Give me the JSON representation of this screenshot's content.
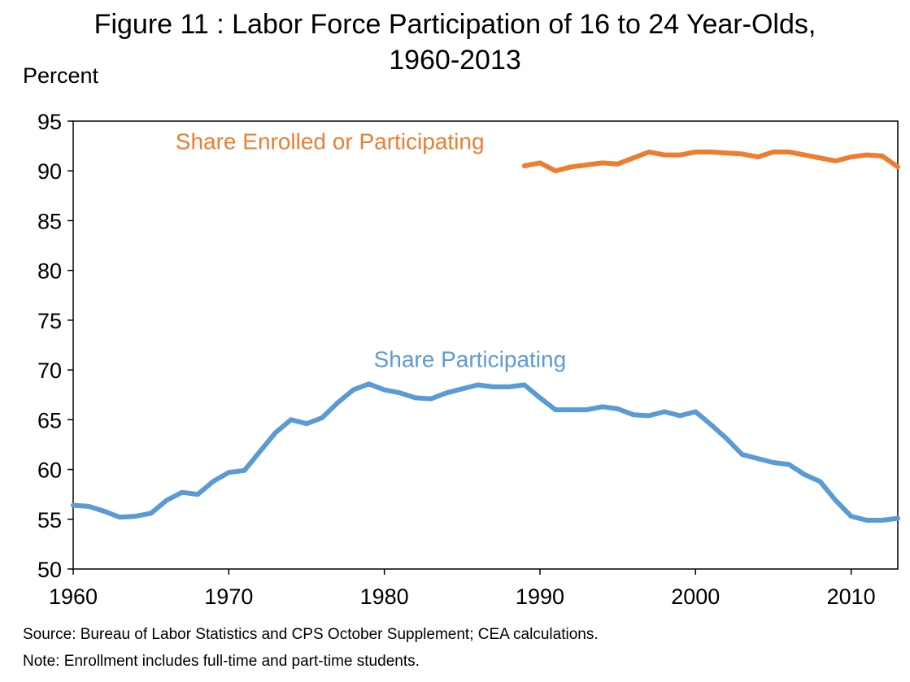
{
  "figure": {
    "title_line1": "Figure 11 : Labor Force Participation of 16 to 24 Year-Olds,",
    "title_line2": "1960-2013",
    "source": "Source: Bureau of Labor Statistics and CPS October Supplement; CEA calculations.",
    "note": "Note: Enrollment includes full-time and part-time students."
  },
  "chart_data": {
    "type": "line",
    "title": "Figure 11 : Labor Force Participation of 16 to 24 Year-Olds, 1960-2013",
    "xlabel": "",
    "ylabel": "Percent",
    "xlim": [
      1960,
      2013
    ],
    "ylim": [
      50,
      95
    ],
    "x_ticks": [
      1960,
      1970,
      1980,
      1990,
      2000,
      2010
    ],
    "y_ticks": [
      50,
      55,
      60,
      65,
      70,
      75,
      80,
      85,
      90,
      95
    ],
    "grid": false,
    "legend": "inline labels",
    "series": [
      {
        "name": "Share Participating",
        "color": "#5b9bd5",
        "x": [
          1960,
          1961,
          1962,
          1963,
          1964,
          1965,
          1966,
          1967,
          1968,
          1969,
          1970,
          1971,
          1972,
          1973,
          1974,
          1975,
          1976,
          1977,
          1978,
          1979,
          1980,
          1981,
          1982,
          1983,
          1984,
          1985,
          1986,
          1987,
          1988,
          1989,
          1990,
          1991,
          1992,
          1993,
          1994,
          1995,
          1996,
          1997,
          1998,
          1999,
          2000,
          2001,
          2002,
          2003,
          2004,
          2005,
          2006,
          2007,
          2008,
          2009,
          2010,
          2011,
          2012,
          2013
        ],
        "y": [
          56.4,
          56.3,
          55.8,
          55.2,
          55.3,
          55.6,
          56.9,
          57.7,
          57.5,
          58.8,
          59.7,
          59.9,
          61.8,
          63.7,
          65.0,
          64.6,
          65.2,
          66.7,
          68.0,
          68.6,
          68.0,
          67.7,
          67.2,
          67.1,
          67.7,
          68.1,
          68.5,
          68.3,
          68.3,
          68.5,
          67.2,
          66.0,
          66.0,
          66.0,
          66.3,
          66.1,
          65.5,
          65.4,
          65.8,
          65.4,
          65.8,
          64.5,
          63.1,
          61.5,
          61.1,
          60.7,
          60.5,
          59.5,
          58.8,
          56.9,
          55.3,
          54.9,
          54.9,
          55.1
        ]
      },
      {
        "name": "Share Enrolled or Participating",
        "color": "#ed7d31",
        "x": [
          1989,
          1990,
          1991,
          1992,
          1993,
          1994,
          1995,
          1996,
          1997,
          1998,
          1999,
          2000,
          2001,
          2002,
          2003,
          2004,
          2005,
          2006,
          2007,
          2008,
          2009,
          2010,
          2011,
          2012,
          2013
        ],
        "y": [
          90.5,
          90.8,
          90.0,
          90.4,
          90.6,
          90.8,
          90.7,
          91.3,
          91.9,
          91.6,
          91.6,
          91.9,
          91.9,
          91.8,
          91.7,
          91.4,
          91.9,
          91.9,
          91.6,
          91.3,
          91.0,
          91.4,
          91.6,
          91.5,
          90.4
        ]
      }
    ]
  }
}
